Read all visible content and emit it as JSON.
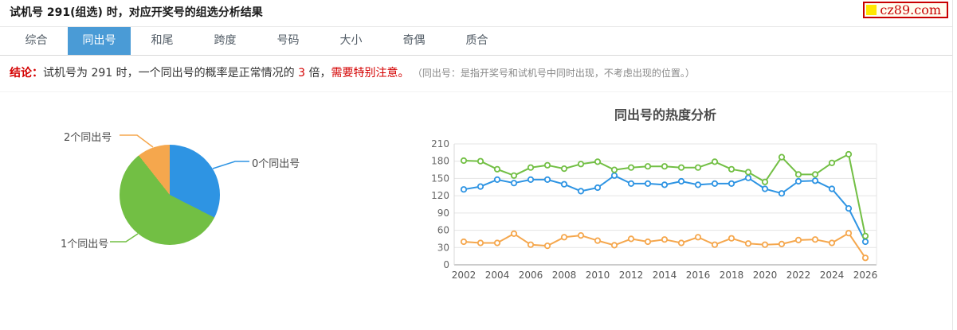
{
  "header": {
    "title": "试机号 291(组选) 时，对应开奖号的组选分析结果",
    "logo": {
      "text": "cz89.com",
      "border_color": "#c80000",
      "square_color": "#ffe700",
      "text_color": "#c80000"
    }
  },
  "tabs": {
    "accent_color": "#4a9bd6",
    "items": [
      {
        "name": "zonghe",
        "label": "综合",
        "active": false
      },
      {
        "name": "tongchuhao",
        "label": "同出号",
        "active": true
      },
      {
        "name": "hewei",
        "label": "和尾",
        "active": false
      },
      {
        "name": "kuadu",
        "label": "跨度",
        "active": false
      },
      {
        "name": "haoma",
        "label": "号码",
        "active": false
      },
      {
        "name": "daxiao",
        "label": "大小",
        "active": false
      },
      {
        "name": "jiou",
        "label": "奇偶",
        "active": false
      },
      {
        "name": "zhihe",
        "label": "质合",
        "active": false
      }
    ]
  },
  "conclusion": {
    "prefix": "结论：",
    "text_before": "试机号为 291 时，一个同出号的概率是正常情况的 ",
    "highlight_number": "3",
    "text_middle": " 倍，",
    "warning": "需要特别注意。",
    "note": "（同出号：是指开奖号和试机号中同时出现，不考虑出现的位置。）",
    "red_color": "#d40000",
    "note_color": "#888888"
  },
  "chart_data": [
    {
      "type": "pie",
      "name": "同出号占比",
      "slices": [
        {
          "label": "0个同出号",
          "percent": 32.5,
          "color": "#2e94e3"
        },
        {
          "label": "1个同出号",
          "percent": 56.9,
          "color": "#72bf44"
        },
        {
          "label": "2个同出号",
          "percent": 10.6,
          "color": "#f5a74d"
        }
      ],
      "legend_position": "callout-labels",
      "start_angle_deg": 0
    },
    {
      "type": "line",
      "title": "同出号的热度分析",
      "x": [
        2002,
        2003,
        2004,
        2005,
        2006,
        2007,
        2008,
        2009,
        2010,
        2011,
        2012,
        2013,
        2014,
        2015,
        2016,
        2017,
        2018,
        2019,
        2020,
        2021,
        2022,
        2023,
        2024,
        2025,
        2026
      ],
      "x_tick_labels": [
        "2002",
        "2004",
        "2006",
        "2008",
        "2010",
        "2012",
        "2014",
        "2016",
        "2018",
        "2020",
        "2022",
        "2024",
        "2026"
      ],
      "xlabel": "",
      "ylabel": "",
      "ylim": [
        0,
        210
      ],
      "y_ticks": [
        0,
        30,
        60,
        90,
        120,
        150,
        180,
        210
      ],
      "grid": true,
      "legend_position": "none",
      "marker": "open-circle",
      "series": [
        {
          "name": "0个同出号",
          "color": "#2e94e3",
          "values": [
            131,
            136,
            148,
            142,
            148,
            148,
            140,
            128,
            134,
            155,
            141,
            141,
            139,
            145,
            139,
            141,
            141,
            151,
            132,
            124,
            145,
            146,
            132,
            98,
            40
          ]
        },
        {
          "name": "1个同出号",
          "color": "#72bf44",
          "values": [
            181,
            180,
            166,
            155,
            169,
            173,
            167,
            175,
            179,
            165,
            169,
            171,
            171,
            169,
            169,
            179,
            166,
            161,
            144,
            187,
            157,
            157,
            177,
            192,
            50
          ]
        },
        {
          "name": "2个同出号",
          "color": "#f5a74d",
          "values": [
            40,
            38,
            38,
            54,
            35,
            33,
            48,
            51,
            42,
            34,
            45,
            40,
            44,
            38,
            48,
            35,
            46,
            37,
            35,
            36,
            43,
            44,
            38,
            55,
            12
          ]
        }
      ]
    }
  ]
}
